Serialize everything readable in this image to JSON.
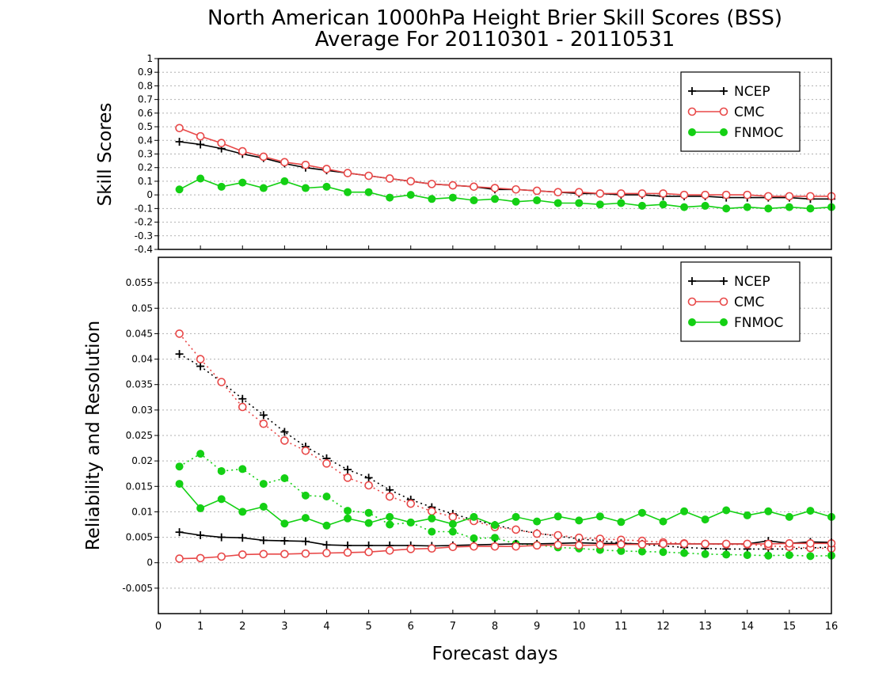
{
  "title": {
    "line1": "North American 1000hPa Height Brier Skill Scores (BSS)",
    "line2": "Average For 20110301 - 20110531"
  },
  "xlabel": "Forecast days",
  "colors": {
    "NCEP": "#000000",
    "CMC": "#e84848",
    "FNMOC": "#14d014"
  },
  "chart_data": [
    {
      "type": "line",
      "panel": "top",
      "ylabel": "Skill Scores",
      "xlim": [
        0,
        16
      ],
      "ylim": [
        -0.4,
        1
      ],
      "xticks": [
        0,
        1,
        2,
        3,
        4,
        5,
        6,
        7,
        8,
        9,
        10,
        11,
        12,
        13,
        14,
        15,
        16
      ],
      "yticks": [
        -0.4,
        -0.3,
        -0.2,
        -0.1,
        0,
        0.1,
        0.2,
        0.3,
        0.4,
        0.5,
        0.6,
        0.7,
        0.8,
        0.9,
        1
      ],
      "ytick_labels": [
        "-0.4",
        "-0.3",
        "-0.2",
        "-0.1",
        "0",
        "0.1",
        "0.2",
        "0.3",
        "0.4",
        "0.5",
        "0.6",
        "0.7",
        "0.8",
        "0.9",
        "1"
      ],
      "grid": true,
      "legend": {
        "placement": "top-right",
        "entries": [
          "NCEP",
          "CMC",
          "FNMOC"
        ]
      },
      "x": [
        0.5,
        1,
        1.5,
        2,
        2.5,
        3,
        3.5,
        4,
        4.5,
        5,
        5.5,
        6,
        6.5,
        7,
        7.5,
        8,
        8.5,
        9,
        9.5,
        10,
        10.5,
        11,
        11.5,
        12,
        12.5,
        13,
        13.5,
        14,
        14.5,
        15,
        15.5,
        16
      ],
      "series": [
        {
          "name": "NCEP",
          "style": "solid",
          "marker": "plus",
          "values": [
            0.39,
            0.37,
            0.34,
            0.3,
            0.27,
            0.23,
            0.2,
            0.18,
            0.16,
            0.14,
            0.12,
            0.1,
            0.08,
            0.07,
            0.06,
            0.04,
            0.04,
            0.03,
            0.02,
            0.01,
            0.01,
            0.0,
            0.0,
            -0.01,
            -0.01,
            -0.01,
            -0.02,
            -0.02,
            -0.02,
            -0.02,
            -0.03,
            -0.03
          ]
        },
        {
          "name": "CMC",
          "style": "solid",
          "marker": "open-circle",
          "values": [
            0.49,
            0.43,
            0.38,
            0.32,
            0.28,
            0.24,
            0.22,
            0.19,
            0.16,
            0.14,
            0.12,
            0.1,
            0.08,
            0.07,
            0.06,
            0.05,
            0.04,
            0.03,
            0.02,
            0.02,
            0.01,
            0.01,
            0.01,
            0.01,
            0.0,
            0.0,
            0.0,
            0.0,
            -0.01,
            -0.01,
            -0.01,
            -0.01
          ]
        },
        {
          "name": "FNMOC",
          "style": "solid",
          "marker": "filled-circle",
          "values": [
            0.04,
            0.12,
            0.06,
            0.09,
            0.05,
            0.1,
            0.05,
            0.06,
            0.02,
            0.02,
            -0.02,
            0.0,
            -0.03,
            -0.02,
            -0.04,
            -0.03,
            -0.05,
            -0.04,
            -0.06,
            -0.06,
            -0.07,
            -0.06,
            -0.08,
            -0.07,
            -0.09,
            -0.08,
            -0.1,
            -0.09,
            -0.1,
            -0.09,
            -0.1,
            -0.09
          ]
        }
      ]
    },
    {
      "type": "line",
      "panel": "bottom",
      "ylabel": "Reliability and Resolution",
      "xlim": [
        0,
        16
      ],
      "ylim": [
        -0.01,
        0.06
      ],
      "xticks": [
        0,
        1,
        2,
        3,
        4,
        5,
        6,
        7,
        8,
        9,
        10,
        11,
        12,
        13,
        14,
        15,
        16
      ],
      "yticks": [
        -0.005,
        0,
        0.005,
        0.01,
        0.015,
        0.02,
        0.025,
        0.03,
        0.035,
        0.04,
        0.045,
        0.05,
        0.055
      ],
      "ytick_labels": [
        "-0.005",
        "0",
        "0.005",
        "0.01",
        "0.015",
        "0.02",
        "0.025",
        "0.03",
        "0.035",
        "0.04",
        "0.045",
        "0.05",
        "0.055"
      ],
      "grid": true,
      "legend": {
        "placement": "top-right",
        "entries": [
          "NCEP",
          "CMC",
          "FNMOC"
        ]
      },
      "x": [
        0.5,
        1,
        1.5,
        2,
        2.5,
        3,
        3.5,
        4,
        4.5,
        5,
        5.5,
        6,
        6.5,
        7,
        7.5,
        8,
        8.5,
        9,
        9.5,
        10,
        10.5,
        11,
        11.5,
        12,
        12.5,
        13,
        13.5,
        14,
        14.5,
        15,
        15.5,
        16
      ],
      "series": [
        {
          "name": "NCEP",
          "style": "dotted",
          "marker": "plus",
          "values": [
            0.041,
            0.0386,
            0.0355,
            0.0322,
            0.029,
            0.0257,
            0.0228,
            0.0205,
            0.0183,
            0.0167,
            0.0143,
            0.0124,
            0.0109,
            0.0096,
            0.0084,
            0.0074,
            0.0065,
            0.0058,
            0.0052,
            0.0047,
            0.0043,
            0.0039,
            0.0036,
            0.0033,
            0.003,
            0.0028,
            0.0027,
            0.0027,
            0.0027,
            0.0027,
            0.0029,
            0.0031
          ]
        },
        {
          "name": "CMC",
          "style": "dotted",
          "marker": "open-circle",
          "values": [
            0.045,
            0.04,
            0.0355,
            0.0306,
            0.0273,
            0.024,
            0.022,
            0.0195,
            0.0167,
            0.0152,
            0.013,
            0.0116,
            0.0101,
            0.009,
            0.0082,
            0.007,
            0.0065,
            0.0057,
            0.0054,
            0.0049,
            0.0047,
            0.0045,
            0.0043,
            0.004,
            0.0038,
            0.0037,
            0.0036,
            0.0036,
            0.0033,
            0.0031,
            0.0029,
            0.0028
          ]
        },
        {
          "name": "FNMOC",
          "style": "dotted",
          "marker": "filled-circle",
          "values": [
            0.0189,
            0.0214,
            0.018,
            0.0184,
            0.0155,
            0.0166,
            0.0132,
            0.013,
            0.0102,
            0.0098,
            0.0075,
            0.0079,
            0.0061,
            0.0061,
            0.0048,
            0.0049,
            0.0037,
            0.0035,
            0.003,
            0.0028,
            0.0025,
            0.0023,
            0.0022,
            0.0021,
            0.0019,
            0.0017,
            0.0016,
            0.0015,
            0.0014,
            0.0015,
            0.0013,
            0.0014
          ]
        },
        {
          "name": "NCEP",
          "style": "solid",
          "marker": "plus",
          "values": [
            0.006,
            0.0054,
            0.005,
            0.0049,
            0.0044,
            0.0043,
            0.0042,
            0.0035,
            0.0034,
            0.0034,
            0.0034,
            0.0034,
            0.0033,
            0.0034,
            0.0035,
            0.0036,
            0.0037,
            0.0037,
            0.0038,
            0.0039,
            0.0038,
            0.0038,
            0.0037,
            0.0037,
            0.0037,
            0.0037,
            0.0037,
            0.0037,
            0.0043,
            0.0038,
            0.0041,
            0.004
          ]
        },
        {
          "name": "CMC",
          "style": "solid",
          "marker": "open-circle",
          "values": [
            0.0008,
            0.0009,
            0.0012,
            0.0016,
            0.0017,
            0.0017,
            0.0018,
            0.0019,
            0.002,
            0.0021,
            0.0024,
            0.0027,
            0.0028,
            0.0031,
            0.0032,
            0.0032,
            0.0032,
            0.0034,
            0.0035,
            0.0034,
            0.0035,
            0.0036,
            0.0036,
            0.0037,
            0.0037,
            0.0037,
            0.0037,
            0.0037,
            0.0037,
            0.0038,
            0.0038,
            0.0038
          ]
        },
        {
          "name": "FNMOC",
          "style": "solid",
          "marker": "filled-circle",
          "values": [
            0.0155,
            0.0107,
            0.0125,
            0.01,
            0.011,
            0.0077,
            0.0088,
            0.0073,
            0.0087,
            0.0078,
            0.009,
            0.0079,
            0.0087,
            0.0076,
            0.009,
            0.0074,
            0.009,
            0.0081,
            0.0091,
            0.0083,
            0.0091,
            0.008,
            0.0098,
            0.0081,
            0.0101,
            0.0085,
            0.0103,
            0.0093,
            0.0101,
            0.009,
            0.0102,
            0.009
          ]
        }
      ]
    }
  ]
}
